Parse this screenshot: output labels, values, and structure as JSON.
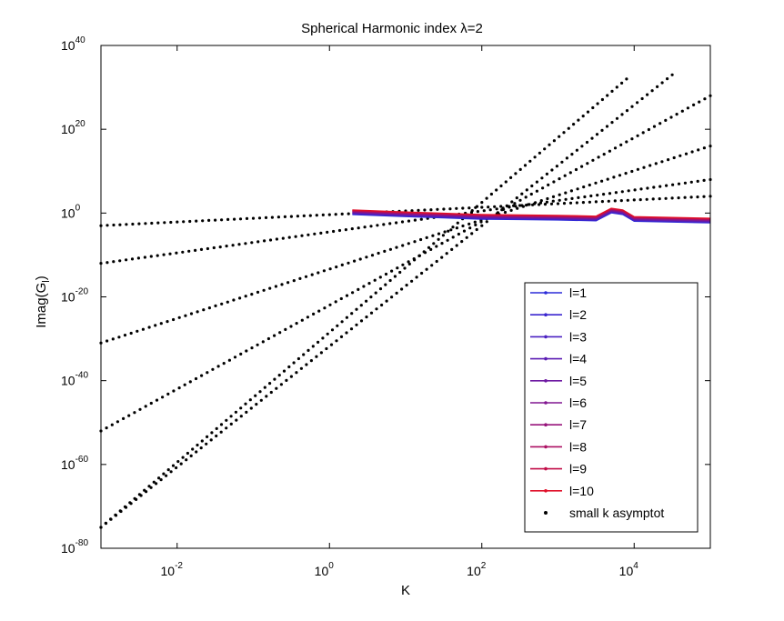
{
  "chart_data": {
    "type": "line",
    "title": "Spherical Harmonic index  λ=2",
    "xlabel": "K",
    "ylabel": "Imag(G",
    "ylabel_sub": "l",
    "ylabel_close": ")",
    "xscale": "log",
    "yscale": "log",
    "xlim_exp": [
      -3,
      5
    ],
    "ylim_exp": [
      -80,
      40
    ],
    "x_ticks_exp": [
      -2,
      0,
      2,
      4
    ],
    "y_ticks_exp": [
      -80,
      -60,
      -40,
      -20,
      0,
      20,
      40
    ],
    "tick_base": "10",
    "grid": false,
    "legend": {
      "position": "bottom-right",
      "entries": [
        "l=1",
        "l=2",
        "l=3",
        "l=4",
        "l=5",
        "l=6",
        "l=7",
        "l=8",
        "l=9",
        "l=10",
        "small k asymptot"
      ]
    },
    "series_colors": [
      "#2b2bd9",
      "#3a25cf",
      "#4a20c1",
      "#5b1cb3",
      "#6e19a2",
      "#811690",
      "#96137a",
      "#ac1063",
      "#c20d48",
      "#e0102a"
    ],
    "asymptote_color": "#000000",
    "asymptotes": [
      {
        "name": "l=1",
        "log10_x": [
          -3,
          5
        ],
        "log10_y": [
          -3,
          4
        ]
      },
      {
        "name": "l=2",
        "log10_x": [
          -3,
          5
        ],
        "log10_y": [
          -12,
          8
        ]
      },
      {
        "name": "l=3",
        "log10_x": [
          -3,
          5
        ],
        "log10_y": [
          -31,
          16
        ]
      },
      {
        "name": "l=4",
        "log10_x": [
          -3,
          5
        ],
        "log10_y": [
          -52,
          28
        ]
      },
      {
        "name": "l=5",
        "log10_x": [
          -3,
          3.9
        ],
        "log10_y": [
          -75,
          32
        ]
      },
      {
        "name": "l=6",
        "log10_x": [
          -3,
          4.5
        ],
        "log10_y": [
          -75,
          33
        ]
      }
    ],
    "series_curve": {
      "log10_x": [
        0.3,
        1.0,
        1.5,
        2.0,
        2.5,
        3.0,
        3.5,
        3.7,
        3.85,
        4.0,
        4.5,
        5.0
      ],
      "log10_y": [
        0.2,
        -0.3,
        -0.6,
        -0.9,
        -1.0,
        -1.1,
        -1.3,
        0.6,
        0.2,
        -1.4,
        -1.6,
        -1.8
      ]
    }
  }
}
